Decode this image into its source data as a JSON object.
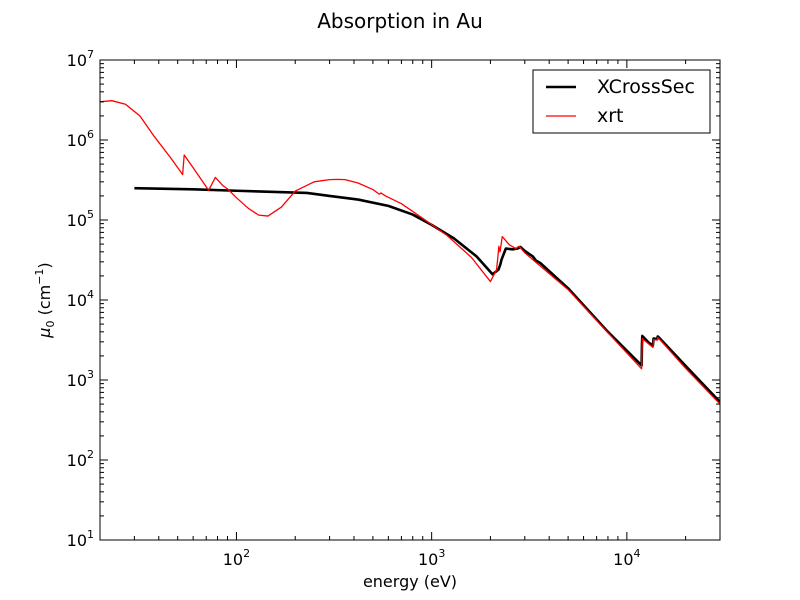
{
  "chart_data": {
    "type": "line",
    "title": "Absorption in Au",
    "xlabel": "energy (eV)",
    "ylabel": {
      "symbol": "μ",
      "subscript": "0",
      "unit_open": " (cm",
      "unit_exp": "−1",
      "unit_close": ")"
    },
    "xscale": "log",
    "yscale": "log",
    "xlim": [
      20,
      30000
    ],
    "ylim": [
      10,
      10000000
    ],
    "xticks": [
      {
        "value": 100,
        "base": "10",
        "exp": "2"
      },
      {
        "value": 1000,
        "base": "10",
        "exp": "3"
      },
      {
        "value": 10000,
        "base": "10",
        "exp": "4"
      }
    ],
    "yticks": [
      {
        "value": 10,
        "base": "10",
        "exp": "1"
      },
      {
        "value": 100,
        "base": "10",
        "exp": "2"
      },
      {
        "value": 1000,
        "base": "10",
        "exp": "3"
      },
      {
        "value": 10000,
        "base": "10",
        "exp": "4"
      },
      {
        "value": 100000,
        "base": "10",
        "exp": "5"
      },
      {
        "value": 1000000,
        "base": "10",
        "exp": "6"
      },
      {
        "value": 10000000,
        "base": "10",
        "exp": "7"
      }
    ],
    "grid": false,
    "legend_position": "top-right",
    "series": [
      {
        "name": "XCrossSec",
        "color": "#000000",
        "width": 2.6,
        "x": [
          30,
          60,
          100,
          150,
          230,
          300,
          420,
          600,
          800,
          1000,
          1300,
          1700,
          2050,
          2200,
          2250,
          2280,
          2400,
          2600,
          2760,
          2850,
          3000,
          3300,
          3425,
          3600,
          5000,
          8000,
          11900,
          11950,
          12000,
          13000,
          13600,
          13700,
          14300,
          14400,
          14600,
          20000,
          30000
        ],
        "y": [
          250000,
          242000,
          232000,
          225000,
          218000,
          200000,
          180000,
          150000,
          117000,
          87000,
          59000,
          35000,
          21000,
          24000,
          28000,
          32000,
          44000,
          43000,
          44000,
          46000,
          41000,
          35000,
          31000,
          29000,
          14000,
          4000,
          1520,
          2800,
          3550,
          2900,
          2700,
          3300,
          3250,
          3500,
          3400,
          1500,
          530
        ]
      },
      {
        "name": "xrt",
        "color": "#ff0000",
        "width": 1.3,
        "x": [
          20,
          23,
          27,
          32,
          38,
          46,
          53,
          54,
          60,
          70,
          72,
          78,
          85,
          90,
          100,
          115,
          130,
          145,
          170,
          200,
          250,
          300,
          330,
          360,
          420,
          500,
          540,
          550,
          580,
          700,
          900,
          1200,
          1600,
          2000,
          2150,
          2180,
          2210,
          2240,
          2300,
          2500,
          2700,
          2800,
          3000,
          3400,
          5000,
          8000,
          11900,
          11950,
          12000,
          13000,
          13600,
          13700,
          14300,
          14400,
          14600,
          20000,
          30000
        ],
        "y": [
          3000000,
          3100000,
          2800000,
          2000000,
          1100000,
          600000,
          370000,
          650000,
          450000,
          260000,
          235000,
          340000,
          270000,
          245000,
          190000,
          140000,
          115000,
          112000,
          145000,
          230000,
          300000,
          320000,
          322000,
          320000,
          290000,
          240000,
          210000,
          218000,
          200000,
          160000,
          105000,
          64000,
          34000,
          17000,
          24000,
          33000,
          47000,
          40000,
          62000,
          49000,
          44000,
          47000,
          39000,
          30000,
          13500,
          3900,
          1380,
          2400,
          3300,
          2800,
          2550,
          3200,
          3150,
          3400,
          3300,
          1400,
          500
        ]
      }
    ]
  }
}
